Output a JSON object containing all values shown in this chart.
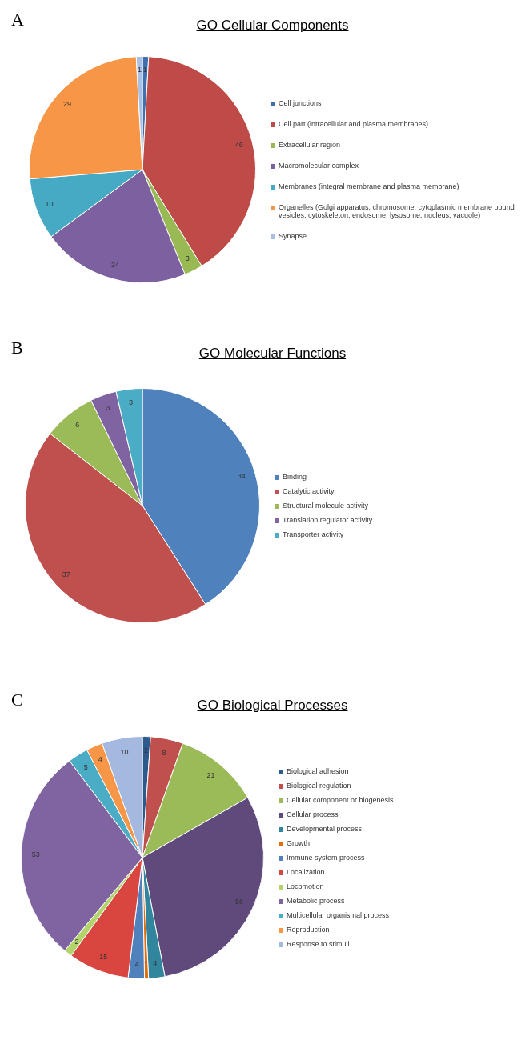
{
  "chart_data": [
    {
      "type": "pie",
      "title": "GO Cellular Components",
      "annotations": [
        "A"
      ],
      "data_labels": true,
      "legend": "right",
      "categories": [
        "Cell junctions",
        "Cell part (intracellular and plasma membranes)",
        "Extracellular region",
        "Macromolecular complex",
        "Membranes (integral membrane and plasma membrane)",
        "Organelles (Golgi apparatus, chromosome, cytoplasmic membrane bound vesicles, cytoskeleton, endosome, lysosome, nucleus, vacuole)",
        "Synapse"
      ],
      "values": [
        1,
        46,
        3,
        24,
        10,
        29,
        1
      ],
      "colors": [
        "#3f6fae",
        "#be4b48",
        "#98b954",
        "#7d60a0",
        "#46aac5",
        "#f79646",
        "#a9bfe3"
      ]
    },
    {
      "type": "pie",
      "title": "GO Molecular Functions",
      "annotations": [
        "B"
      ],
      "data_labels": true,
      "legend": "right",
      "categories": [
        "Binding",
        "Catalytic activity",
        "Structural molecule activity",
        "Translation regulator activity",
        "Transporter activity"
      ],
      "values": [
        34,
        37,
        6,
        3,
        3
      ],
      "colors": [
        "#4f81bd",
        "#c0504d",
        "#9bbb59",
        "#8064a2",
        "#4bacc6"
      ]
    },
    {
      "type": "pie",
      "title": "GO Biological Processes",
      "annotations": [
        "C"
      ],
      "data_labels": true,
      "legend": "right",
      "categories": [
        "Biological adhesion",
        "Biological regulation",
        "Cellular component or biogenesis",
        "Cellular process",
        "Developmental process",
        "Growth",
        "Immune system process",
        "Localization",
        "Locomotion",
        "Metabolic process",
        "Multicellular organismal process",
        "Reproduction",
        "Response to stimuli"
      ],
      "values": [
        2,
        8,
        21,
        56,
        4,
        1,
        4,
        15,
        2,
        53,
        5,
        4,
        10
      ],
      "colors": [
        "#2c5a8f",
        "#c0504d",
        "#9bbb59",
        "#604a7b",
        "#31859c",
        "#e46c0a",
        "#4f81bd",
        "#d9463f",
        "#b3d36b",
        "#8064a2",
        "#4bacc6",
        "#f79646",
        "#a5b9e0"
      ]
    }
  ]
}
